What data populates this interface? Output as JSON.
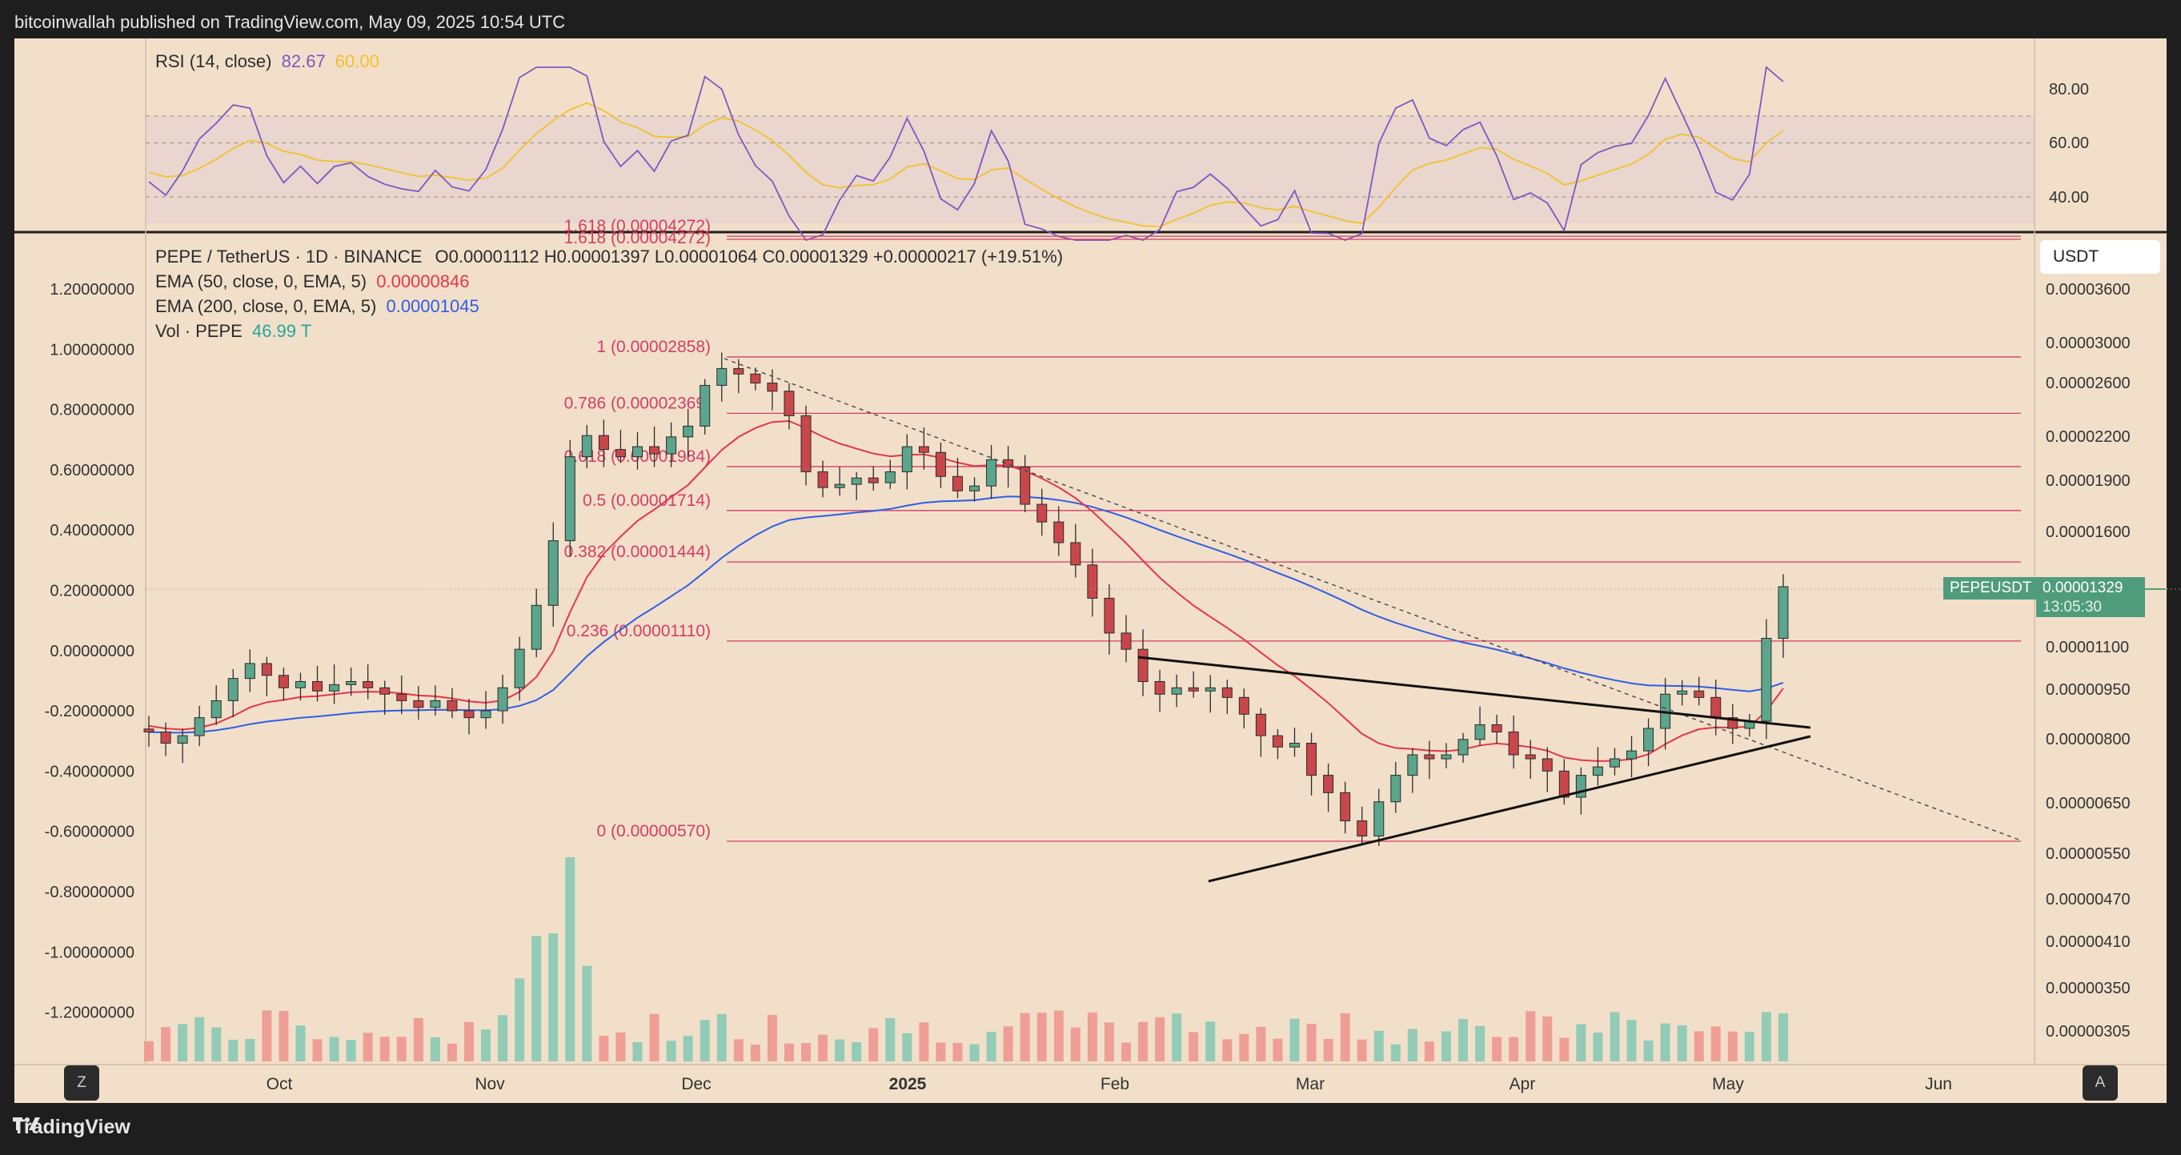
{
  "header": {
    "publisher": "bitcoinwallah published on TradingView.com, May 09, 2025 10:54 UTC"
  },
  "footer": {
    "brand": "TradingView",
    "left_btn": "Z",
    "right_btn": "A"
  },
  "colors": {
    "up": "#5aa58c",
    "down": "#c9474b",
    "ema50": "#e5364a",
    "ema200": "#2f5ee5",
    "rsi": "#7e57c2",
    "rsi_ma": "#f5c02a",
    "fib": "#d43d63"
  },
  "rsi": {
    "label": "RSI (14, close)",
    "value": "82.67",
    "ma_value": "60.00",
    "levels": [
      "80.00",
      "60.00",
      "40.00"
    ]
  },
  "legend": {
    "symbol": "PEPE / TetherUS · 1D · BINANCE",
    "ohlc": "O0.00001112 H0.00001397 L0.00001064 C0.00001329 +0.00000217 (+19.51%)",
    "ema50_label": "EMA (50, close, 0, EMA, 5)",
    "ema50_value": "0.00000846",
    "ema200_label": "EMA (200, close, 0, EMA, 5)",
    "ema200_value": "0.00001045",
    "vol_label": "Vol · PEPE",
    "vol_value": "46.99 T"
  },
  "currency_box": "USDT",
  "price_tag": {
    "symbol": "PEPEUSDT",
    "price": "0.00001329",
    "timer": "13:05:30"
  },
  "chart_data": {
    "type": "candlestick",
    "title": "PEPE / TetherUS · 1D · BINANCE",
    "xlabel": "",
    "ylabel": "",
    "x_ticks": [
      "Oct",
      "Nov",
      "Dec",
      "2025",
      "Feb",
      "Mar",
      "Apr",
      "May",
      "Jun"
    ],
    "right_axis_ticks": [
      "0.00003600",
      "0.00003000",
      "0.00002600",
      "0.00002200",
      "0.00001900",
      "0.00001600",
      "0.00001100",
      "0.00000950",
      "0.00000800",
      "0.00000650",
      "0.00000550",
      "0.00000470",
      "0.00000410",
      "0.00000350",
      "0.00000305"
    ],
    "left_axis_ticks": [
      "1.20000000",
      "1.00000000",
      "0.80000000",
      "0.60000000",
      "0.40000000",
      "0.20000000",
      "0.00000000",
      "-0.20000000",
      "-0.40000000",
      "-0.60000000",
      "-0.80000000",
      "-1.00000000",
      "-1.20000000"
    ],
    "fib_levels": [
      {
        "label": "1.618 (0.00004272)",
        "value": 4.272e-05
      },
      {
        "label": "1 (0.00002858)",
        "value": 2.858e-05
      },
      {
        "label": "0.786 (0.00002369)",
        "value": 2.369e-05
      },
      {
        "label": "0.618 (0.00001984)",
        "value": 1.984e-05
      },
      {
        "label": "0.5 (0.00001714)",
        "value": 1.714e-05
      },
      {
        "label": "0.382 (0.00001444)",
        "value": 1.444e-05
      },
      {
        "label": "0.236 (0.00001110)",
        "value": 1.11e-05
      },
      {
        "label": "0 (0.00000570)",
        "value": 5.7e-06
      }
    ],
    "close_series": [
      8.2e-06,
      7.9e-06,
      8.1e-06,
      8.6e-06,
      9.1e-06,
      9.8e-06,
      1.03e-05,
      9.9e-06,
      9.5e-06,
      9.7e-06,
      9.4e-06,
      9.6e-06,
      9.7e-06,
      9.5e-06,
      9.3e-06,
      9.1e-06,
      8.9e-06,
      9.1e-06,
      8.8e-06,
      8.6e-06,
      8.8e-06,
      9.5e-06,
      1.08e-05,
      1.25e-05,
      1.55e-05,
      2.05e-05,
      2.2e-05,
      2.1e-05,
      2.05e-05,
      2.12e-05,
      2.07e-05,
      2.19e-05,
      2.27e-05,
      2.6e-05,
      2.75e-05,
      2.7e-05,
      2.62e-05,
      2.55e-05,
      2.35e-05,
      1.95e-05,
      1.85e-05,
      1.87e-05,
      1.91e-05,
      1.88e-05,
      1.95e-05,
      2.12e-05,
      2.08e-05,
      1.92e-05,
      1.83e-05,
      1.86e-05,
      2.03e-05,
      1.98e-05,
      1.75e-05,
      1.65e-05,
      1.54e-05,
      1.43e-05,
      1.28e-05,
      1.14e-05,
      1.08e-05,
      9.7e-06,
      9.3e-06,
      9.5e-06,
      9.4e-06,
      9.5e-06,
      9.2e-06,
      8.7e-06,
      8.1e-06,
      7.8e-06,
      7.9e-06,
      7.1e-06,
      6.7e-06,
      6.1e-06,
      5.8e-06,
      6.5e-06,
      7.1e-06,
      7.6e-06,
      7.5e-06,
      7.6e-06,
      8e-06,
      8.4e-06,
      8.2e-06,
      7.6e-06,
      7.5e-06,
      7.2e-06,
      6.6e-06,
      7.1e-06,
      7.3e-06,
      7.5e-06,
      7.7e-06,
      8.3e-06,
      9.3e-06,
      9.4e-06,
      9.2e-06,
      8.6e-06,
      8.3e-06,
      8.5e-06,
      1.12e-05,
      1.33e-05
    ],
    "close_series_note": "approximate daily closes, Sep 2024 – May 9 2025 (sampled)",
    "volume_note": "Vol · PEPE 46.99 T"
  }
}
